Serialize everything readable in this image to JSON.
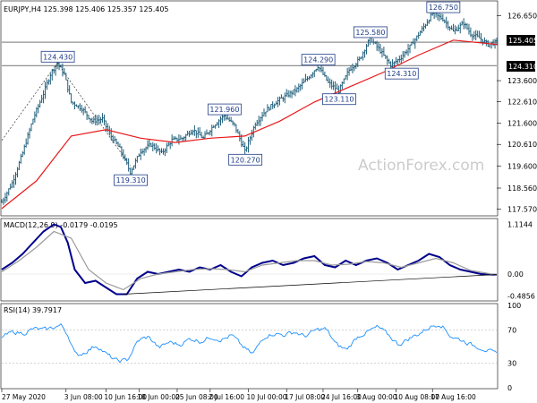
{
  "chart_data": [
    {
      "type": "ohlc",
      "title": "EURJPY,H4  125.398 125.406 125.357 125.405",
      "symbol": "EURJPY",
      "timeframe": "H4",
      "ohlc_last": {
        "open": 125.398,
        "high": 125.406,
        "low": 125.357,
        "close": 125.405
      },
      "ylim": [
        117.3,
        127.3
      ],
      "y_ticks": [
        "126.650",
        "125.405",
        "124.310",
        "123.600",
        "122.610",
        "121.600",
        "120.610",
        "119.600",
        "118.560",
        "117.570"
      ],
      "y_tick_values": [
        126.65,
        125.405,
        124.31,
        123.6,
        122.61,
        121.6,
        120.61,
        119.6,
        118.56,
        117.57
      ],
      "price_marker": {
        "label": "125.405",
        "value": 125.405
      },
      "level_marker": {
        "label": "124.310",
        "value": 124.31
      },
      "horizontal_lines": [
        125.405,
        124.31
      ],
      "watermark": "ActionForex.com",
      "moving_average_color": "#e8181a",
      "bar_color": "#1f5e7a",
      "close_path": {
        "t": [
          0,
          6,
          12,
          18,
          24,
          28,
          32,
          36,
          40,
          46,
          52,
          58,
          62,
          68,
          74,
          80,
          86,
          92,
          98,
          104,
          110,
          116,
          122,
          128,
          134,
          140,
          146,
          152,
          158,
          164,
          170,
          176,
          182,
          188,
          194,
          200,
          206,
          212,
          218,
          224,
          230,
          236,
          242,
          248,
          254,
          260,
          266,
          270,
          275,
          280,
          285
        ],
        "close": [
          117.9,
          118.8,
          120.2,
          121.8,
          123.0,
          123.9,
          124.43,
          123.9,
          122.6,
          122.3,
          121.7,
          121.8,
          121.1,
          120.4,
          119.31,
          120.3,
          120.6,
          120.2,
          120.8,
          120.9,
          121.3,
          120.9,
          121.5,
          121.96,
          121.5,
          120.27,
          121.6,
          122.2,
          122.6,
          122.9,
          123.2,
          123.7,
          124.29,
          123.5,
          123.11,
          124.1,
          124.6,
          125.58,
          125.0,
          124.31,
          124.7,
          125.3,
          126.0,
          126.75,
          126.5,
          125.9,
          126.3,
          125.8,
          125.6,
          125.3,
          125.405
        ]
      },
      "ma_path": {
        "t": [
          0,
          20,
          40,
          60,
          80,
          100,
          120,
          140,
          160,
          180,
          200,
          220,
          240,
          260,
          285
        ],
        "value": [
          117.6,
          118.9,
          121.0,
          121.3,
          120.9,
          120.7,
          120.9,
          121.0,
          121.7,
          122.6,
          123.3,
          124.0,
          124.8,
          125.5,
          125.3
        ]
      },
      "swing_labels": [
        {
          "label": "124.430",
          "t": 32,
          "value": 124.43
        },
        {
          "label": "119.310",
          "t": 74,
          "value": 119.31
        },
        {
          "label": "121.960",
          "t": 128,
          "value": 121.96
        },
        {
          "label": "120.270",
          "t": 140,
          "value": 120.27
        },
        {
          "label": "124.290",
          "t": 182,
          "value": 124.29
        },
        {
          "label": "123.110",
          "t": 194,
          "value": 123.11
        },
        {
          "label": "125.580",
          "t": 212,
          "value": 125.58
        },
        {
          "label": "124.310",
          "t": 230,
          "value": 124.31
        },
        {
          "label": "126.750",
          "t": 254,
          "value": 126.75
        }
      ],
      "trendline": {
        "from": {
          "t": 0,
          "value": 120.8
        },
        "to": {
          "t": 32,
          "value": 124.43
        }
      }
    },
    {
      "type": "line",
      "title": "MACD(12,26,9) -0.0179 -0.0195",
      "ylim": [
        -0.56,
        1.2
      ],
      "y_ticks": [
        "1.1144",
        "0.00",
        "-0.4856"
      ],
      "y_tick_values": [
        1.1144,
        0.0,
        -0.4856
      ],
      "zero_line": 0.0,
      "series": [
        {
          "color": "#00008b",
          "t": [
            0,
            6,
            12,
            18,
            24,
            30,
            34,
            38,
            42,
            48,
            54,
            60,
            66,
            72,
            78,
            84,
            90,
            96,
            102,
            108,
            114,
            120,
            126,
            132,
            138,
            144,
            150,
            156,
            162,
            168,
            174,
            180,
            186,
            192,
            198,
            204,
            210,
            216,
            222,
            228,
            234,
            240,
            246,
            252,
            258,
            264,
            270,
            276,
            285
          ],
          "values": [
            0.1,
            0.25,
            0.45,
            0.7,
            0.95,
            1.11,
            1.05,
            0.7,
            0.1,
            -0.2,
            -0.15,
            -0.3,
            -0.45,
            -0.45,
            -0.1,
            0.05,
            0.0,
            0.05,
            0.1,
            0.05,
            0.15,
            0.1,
            0.2,
            0.05,
            -0.05,
            0.15,
            0.25,
            0.3,
            0.2,
            0.25,
            0.35,
            0.4,
            0.2,
            0.15,
            0.3,
            0.2,
            0.3,
            0.35,
            0.25,
            0.1,
            0.2,
            0.3,
            0.45,
            0.38,
            0.2,
            0.1,
            0.05,
            0.0,
            -0.018
          ]
        },
        {
          "color": "#9a9a9a",
          "t": [
            0,
            10,
            20,
            30,
            40,
            50,
            60,
            70,
            80,
            90,
            100,
            110,
            120,
            130,
            140,
            150,
            160,
            170,
            180,
            190,
            200,
            210,
            220,
            230,
            240,
            250,
            260,
            270,
            285
          ],
          "values": [
            0.05,
            0.3,
            0.6,
            0.95,
            0.8,
            0.1,
            -0.2,
            -0.35,
            -0.1,
            0.0,
            0.05,
            0.1,
            0.12,
            0.1,
            0.05,
            0.2,
            0.25,
            0.3,
            0.3,
            0.2,
            0.22,
            0.28,
            0.25,
            0.15,
            0.25,
            0.35,
            0.25,
            0.08,
            -0.02
          ]
        }
      ],
      "trendline": {
        "from": {
          "t": 70,
          "value": -0.45
        },
        "to": {
          "t": 285,
          "value": -0.01
        }
      }
    },
    {
      "type": "line",
      "title": "RSI(14) 39.7917",
      "ylim": [
        0,
        100
      ],
      "y_ticks": [
        "100",
        "70",
        "30",
        "0"
      ],
      "y_tick_values": [
        100,
        70,
        30,
        0
      ],
      "levels": [
        70,
        30
      ],
      "series": [
        {
          "color": "#1e90ff",
          "t": [
            0,
            6,
            12,
            18,
            24,
            30,
            34,
            38,
            42,
            48,
            54,
            60,
            66,
            72,
            78,
            84,
            90,
            96,
            102,
            108,
            114,
            120,
            126,
            132,
            138,
            144,
            150,
            156,
            162,
            168,
            174,
            180,
            186,
            192,
            198,
            204,
            210,
            216,
            222,
            228,
            234,
            240,
            246,
            252,
            258,
            264,
            270,
            276,
            285
          ],
          "values": [
            62,
            68,
            66,
            72,
            70,
            74,
            76,
            62,
            38,
            44,
            52,
            40,
            32,
            34,
            58,
            62,
            48,
            56,
            52,
            60,
            56,
            62,
            58,
            64,
            50,
            40,
            62,
            66,
            64,
            68,
            62,
            70,
            72,
            52,
            46,
            62,
            68,
            74,
            64,
            52,
            60,
            66,
            74,
            78,
            62,
            58,
            52,
            48,
            40
          ]
        }
      ]
    }
  ],
  "time_axis": {
    "labels": [
      "27 May 2020",
      "3 Jun 08:00",
      "10 Jun 16:00",
      "18 Jun 00:00",
      "25 Jun 08:00",
      "2 Jul 16:00",
      "10 Jul 00:00",
      "17 Jul 08:00",
      "24 Jul 16:00",
      "3 Aug 00:00",
      "10 Aug 08:00",
      "17 Aug 16:00"
    ],
    "t": [
      0,
      37,
      60,
      79,
      101,
      120,
      142,
      164,
      185,
      205,
      227,
      248
    ]
  }
}
